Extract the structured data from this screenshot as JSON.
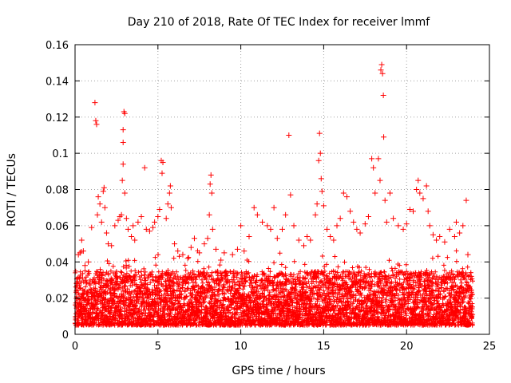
{
  "chart_data": {
    "type": "scatter",
    "title": "Day 210 of 2018, Rate Of TEC Index for receiver lmmf",
    "xlabel": "GPS time / hours",
    "ylabel": "ROTI / TECUs",
    "xlim": [
      0,
      25
    ],
    "ylim": [
      0,
      0.16
    ],
    "x_ticks": [
      0,
      5,
      10,
      15,
      20,
      25
    ],
    "x_tick_labels": [
      "0",
      "5",
      "10",
      "15",
      "20",
      "25"
    ],
    "y_ticks": [
      0,
      0.02,
      0.04,
      0.06,
      0.08,
      0.1,
      0.12,
      0.14,
      0.16
    ],
    "y_tick_labels": [
      "0",
      "0.02",
      "0.04",
      "0.06",
      "0.08",
      "0.1",
      "0.12",
      "0.14",
      "0.16"
    ],
    "grid": true,
    "marker": "+",
    "marker_color": "#ff0000",
    "series": [
      {
        "name": "ROTI",
        "color": "#ff0000",
        "dense_band": {
          "x_range": [
            0,
            24
          ],
          "y_range": [
            0.005,
            0.035
          ],
          "note": "dense cloud of several thousand observations"
        },
        "points": [
          [
            0.1,
            0.028
          ],
          [
            0.2,
            0.044
          ],
          [
            0.3,
            0.045
          ],
          [
            0.4,
            0.052
          ],
          [
            0.5,
            0.046
          ],
          [
            0.6,
            0.038
          ],
          [
            0.8,
            0.04
          ],
          [
            1.0,
            0.059
          ],
          [
            1.2,
            0.128
          ],
          [
            1.25,
            0.118
          ],
          [
            1.3,
            0.116
          ],
          [
            1.35,
            0.066
          ],
          [
            1.4,
            0.076
          ],
          [
            1.5,
            0.072
          ],
          [
            1.6,
            0.062
          ],
          [
            1.7,
            0.079
          ],
          [
            1.75,
            0.081
          ],
          [
            1.8,
            0.07
          ],
          [
            1.9,
            0.056
          ],
          [
            2.0,
            0.05
          ],
          [
            2.2,
            0.049
          ],
          [
            2.4,
            0.06
          ],
          [
            2.6,
            0.063
          ],
          [
            2.7,
            0.065
          ],
          [
            2.8,
            0.066
          ],
          [
            2.85,
            0.085
          ],
          [
            2.9,
            0.094
          ],
          [
            2.9,
            0.106
          ],
          [
            2.9,
            0.113
          ],
          [
            2.95,
            0.123
          ],
          [
            3.0,
            0.122
          ],
          [
            3.0,
            0.078
          ],
          [
            3.1,
            0.064
          ],
          [
            3.2,
            0.058
          ],
          [
            3.4,
            0.054
          ],
          [
            3.5,
            0.06
          ],
          [
            3.6,
            0.052
          ],
          [
            3.8,
            0.062
          ],
          [
            4.0,
            0.065
          ],
          [
            4.2,
            0.092
          ],
          [
            4.3,
            0.058
          ],
          [
            4.5,
            0.057
          ],
          [
            4.7,
            0.059
          ],
          [
            4.8,
            0.062
          ],
          [
            5.0,
            0.065
          ],
          [
            5.1,
            0.069
          ],
          [
            5.2,
            0.096
          ],
          [
            5.25,
            0.089
          ],
          [
            5.3,
            0.095
          ],
          [
            5.5,
            0.064
          ],
          [
            5.6,
            0.072
          ],
          [
            5.7,
            0.078
          ],
          [
            5.75,
            0.082
          ],
          [
            5.8,
            0.07
          ],
          [
            6.0,
            0.05
          ],
          [
            6.2,
            0.046
          ],
          [
            6.5,
            0.044
          ],
          [
            6.8,
            0.042
          ],
          [
            7.0,
            0.048
          ],
          [
            7.2,
            0.053
          ],
          [
            7.5,
            0.045
          ],
          [
            7.8,
            0.05
          ],
          [
            8.0,
            0.053
          ],
          [
            8.1,
            0.066
          ],
          [
            8.15,
            0.083
          ],
          [
            8.2,
            0.088
          ],
          [
            8.25,
            0.078
          ],
          [
            8.3,
            0.058
          ],
          [
            8.5,
            0.047
          ],
          [
            8.8,
            0.041
          ],
          [
            9.0,
            0.045
          ],
          [
            9.5,
            0.044
          ],
          [
            9.8,
            0.047
          ],
          [
            10.0,
            0.06
          ],
          [
            10.2,
            0.046
          ],
          [
            10.5,
            0.054
          ],
          [
            10.8,
            0.07
          ],
          [
            11.0,
            0.066
          ],
          [
            11.3,
            0.062
          ],
          [
            11.6,
            0.06
          ],
          [
            11.8,
            0.058
          ],
          [
            12.0,
            0.07
          ],
          [
            12.2,
            0.053
          ],
          [
            12.5,
            0.058
          ],
          [
            12.7,
            0.066
          ],
          [
            12.9,
            0.11
          ],
          [
            13.0,
            0.077
          ],
          [
            13.2,
            0.06
          ],
          [
            13.5,
            0.052
          ],
          [
            13.8,
            0.049
          ],
          [
            14.0,
            0.054
          ],
          [
            14.2,
            0.052
          ],
          [
            14.5,
            0.066
          ],
          [
            14.6,
            0.072
          ],
          [
            14.7,
            0.096
          ],
          [
            14.75,
            0.111
          ],
          [
            14.8,
            0.1
          ],
          [
            14.85,
            0.086
          ],
          [
            14.9,
            0.079
          ],
          [
            15.0,
            0.071
          ],
          [
            15.2,
            0.058
          ],
          [
            15.4,
            0.054
          ],
          [
            15.6,
            0.052
          ],
          [
            15.8,
            0.06
          ],
          [
            16.0,
            0.064
          ],
          [
            16.2,
            0.078
          ],
          [
            16.4,
            0.076
          ],
          [
            16.6,
            0.068
          ],
          [
            16.8,
            0.062
          ],
          [
            17.0,
            0.058
          ],
          [
            17.2,
            0.056
          ],
          [
            17.5,
            0.061
          ],
          [
            17.7,
            0.065
          ],
          [
            17.9,
            0.097
          ],
          [
            18.0,
            0.092
          ],
          [
            18.1,
            0.078
          ],
          [
            18.3,
            0.097
          ],
          [
            18.4,
            0.085
          ],
          [
            18.45,
            0.146
          ],
          [
            18.5,
            0.149
          ],
          [
            18.55,
            0.144
          ],
          [
            18.6,
            0.132
          ],
          [
            18.62,
            0.109
          ],
          [
            18.7,
            0.074
          ],
          [
            18.8,
            0.062
          ],
          [
            19.0,
            0.078
          ],
          [
            19.2,
            0.064
          ],
          [
            19.5,
            0.06
          ],
          [
            19.8,
            0.058
          ],
          [
            20.0,
            0.061
          ],
          [
            20.2,
            0.069
          ],
          [
            20.4,
            0.068
          ],
          [
            20.6,
            0.08
          ],
          [
            20.7,
            0.085
          ],
          [
            20.8,
            0.078
          ],
          [
            21.0,
            0.075
          ],
          [
            21.2,
            0.082
          ],
          [
            21.3,
            0.068
          ],
          [
            21.4,
            0.06
          ],
          [
            21.6,
            0.055
          ],
          [
            21.8,
            0.052
          ],
          [
            22.0,
            0.054
          ],
          [
            22.3,
            0.051
          ],
          [
            22.6,
            0.058
          ],
          [
            22.9,
            0.054
          ],
          [
            23.0,
            0.062
          ],
          [
            23.2,
            0.056
          ],
          [
            23.4,
            0.06
          ],
          [
            23.6,
            0.074
          ],
          [
            23.7,
            0.044
          ],
          [
            23.9,
            0.032
          ]
        ]
      }
    ]
  }
}
